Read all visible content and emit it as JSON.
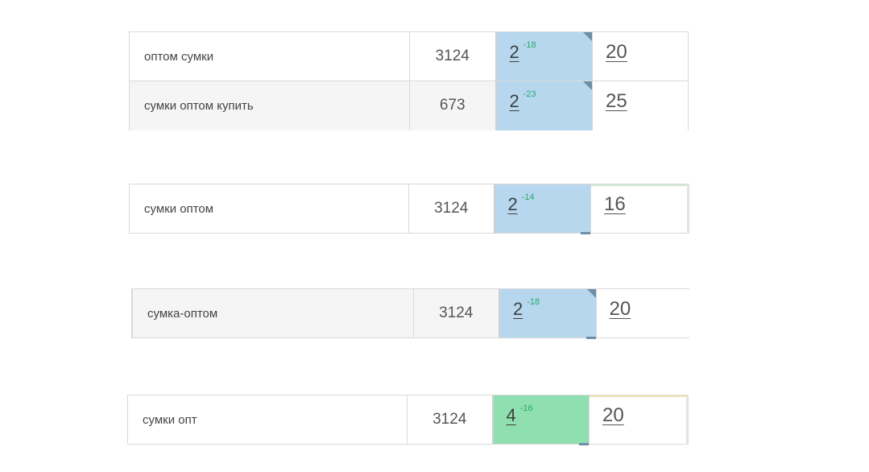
{
  "blocks": [
    {
      "rows": [
        {
          "keyword": "оптом сумки",
          "frequency": "3124",
          "position": "2",
          "delta": "-18",
          "competitors": "20"
        },
        {
          "keyword": "сумки оптом купить",
          "frequency": "673",
          "position": "2",
          "delta": "-23",
          "competitors": "25"
        }
      ]
    },
    {
      "rows": [
        {
          "keyword": "сумки оптом",
          "frequency": "3124",
          "position": "2",
          "delta": "-14",
          "competitors": "16"
        }
      ]
    },
    {
      "rows": [
        {
          "keyword": "сумка-оптом",
          "frequency": "3124",
          "position": "2",
          "delta": "-18",
          "competitors": "20"
        }
      ]
    },
    {
      "rows": [
        {
          "keyword": "сумки опт",
          "frequency": "3124",
          "position": "4",
          "delta": "-16",
          "competitors": "20"
        }
      ]
    }
  ],
  "colors": {
    "position_blue": "#b7d7ee",
    "position_green": "#90dfb0",
    "delta_text": "#2aa86a"
  }
}
